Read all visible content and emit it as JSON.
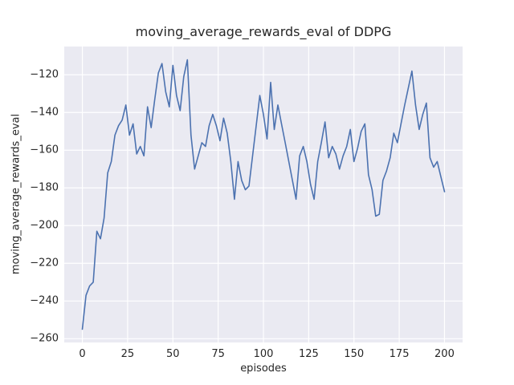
{
  "chart_data": {
    "type": "line",
    "title": "moving_average_rewards_eval of DDPG",
    "xlabel": "episodes",
    "ylabel": "moving_average_rewards_eval",
    "xlim": [
      -10,
      210
    ],
    "ylim": [
      -262,
      -105
    ],
    "xticks": [
      0,
      25,
      50,
      75,
      100,
      125,
      150,
      175,
      200
    ],
    "yticks": [
      -260,
      -240,
      -220,
      -200,
      -180,
      -160,
      -140,
      -120
    ],
    "grid": true,
    "legend": "none",
    "line_color": "#4c72b0",
    "plot_bg": "#eaeaf2",
    "grid_color": "#ffffff",
    "text_color": "#262626",
    "x": [
      0,
      2,
      4,
      6,
      8,
      10,
      12,
      14,
      16,
      18,
      20,
      22,
      24,
      26,
      28,
      30,
      32,
      34,
      36,
      38,
      40,
      42,
      44,
      46,
      48,
      50,
      52,
      54,
      56,
      58,
      60,
      62,
      64,
      66,
      68,
      70,
      72,
      74,
      76,
      78,
      80,
      82,
      84,
      86,
      88,
      90,
      92,
      94,
      96,
      98,
      100,
      102,
      104,
      106,
      108,
      110,
      112,
      114,
      116,
      118,
      120,
      122,
      124,
      126,
      128,
      130,
      132,
      134,
      136,
      138,
      140,
      142,
      144,
      146,
      148,
      150,
      152,
      154,
      156,
      158,
      160,
      162,
      164,
      166,
      168,
      170,
      172,
      174,
      176,
      178,
      180,
      182,
      184,
      186,
      188,
      190,
      192,
      194,
      196,
      198,
      200
    ],
    "y": [
      -255,
      -237,
      -232,
      -230,
      -203,
      -207,
      -196,
      -172,
      -166,
      -152,
      -147,
      -144,
      -136,
      -152,
      -146,
      -162,
      -158,
      -163,
      -137,
      -148,
      -133,
      -119,
      -114,
      -129,
      -137,
      -115,
      -131,
      -139,
      -121,
      -112,
      -152,
      -170,
      -163,
      -156,
      -158,
      -147,
      -141,
      -147,
      -155,
      -143,
      -151,
      -166,
      -186,
      -166,
      -176,
      -181,
      -179,
      -163,
      -147,
      -131,
      -141,
      -154,
      -124,
      -149,
      -136,
      -146,
      -156,
      -166,
      -176,
      -186,
      -163,
      -158,
      -166,
      -178,
      -186,
      -166,
      -156,
      -145,
      -164,
      -158,
      -162,
      -170,
      -163,
      -158,
      -149,
      -166,
      -159,
      -150,
      -146,
      -173,
      -181,
      -195,
      -194,
      -176,
      -171,
      -164,
      -151,
      -156,
      -146,
      -136,
      -127,
      -118,
      -136,
      -149,
      -141,
      -135,
      -164,
      -169,
      -166,
      -174,
      -182
    ]
  }
}
